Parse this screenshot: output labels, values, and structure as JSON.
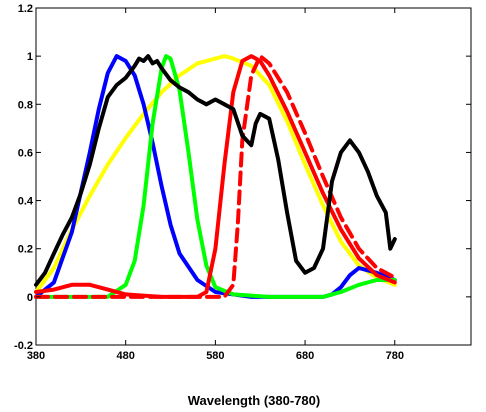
{
  "chart_data": {
    "type": "line",
    "title": "",
    "xlabel": "Wavelength (380-780)",
    "ylabel": "",
    "xlim": [
      380,
      865
    ],
    "ylim": [
      -0.2,
      1.2
    ],
    "x_ticks": [
      380,
      480,
      580,
      680,
      780
    ],
    "y_ticks": [
      -0.2,
      0,
      0.2,
      0.4,
      0.6,
      0.8,
      1,
      1.2
    ],
    "x_tick_labels": [
      "380",
      "480",
      "580",
      "680",
      "780"
    ],
    "y_tick_labels": [
      "-0.2",
      "0",
      "0.2",
      "0.4",
      "0.6",
      "0.8",
      "1",
      "1.2"
    ],
    "grid": false,
    "series": [
      {
        "color": "#ffff00",
        "style": "solid",
        "x": [
          380,
          400,
          420,
          440,
          460,
          480,
          500,
          520,
          540,
          560,
          580,
          590,
          600,
          620,
          640,
          660,
          680,
          700,
          720,
          740,
          760,
          780
        ],
        "y": [
          0.02,
          0.12,
          0.28,
          0.42,
          0.55,
          0.66,
          0.76,
          0.85,
          0.92,
          0.97,
          0.99,
          1.0,
          0.99,
          0.96,
          0.88,
          0.73,
          0.55,
          0.38,
          0.23,
          0.13,
          0.08,
          0.05
        ]
      },
      {
        "color": "#0000ff",
        "style": "solid",
        "x": [
          380,
          400,
          420,
          440,
          450,
          460,
          470,
          480,
          490,
          500,
          510,
          520,
          530,
          540,
          560,
          580,
          600,
          620,
          640,
          680,
          700,
          710,
          720,
          730,
          740,
          760,
          780
        ],
        "y": [
          0.0,
          0.06,
          0.27,
          0.6,
          0.78,
          0.93,
          1.0,
          0.98,
          0.92,
          0.8,
          0.64,
          0.46,
          0.3,
          0.18,
          0.07,
          0.02,
          0.01,
          0.0,
          0.0,
          0.0,
          0.0,
          0.01,
          0.04,
          0.09,
          0.12,
          0.1,
          0.07
        ]
      },
      {
        "color": "#00ff00",
        "style": "solid",
        "x": [
          380,
          460,
          480,
          490,
          500,
          510,
          520,
          525,
          530,
          540,
          550,
          560,
          570,
          580,
          600,
          640,
          700,
          720,
          740,
          760,
          780
        ],
        "y": [
          0.0,
          0.0,
          0.05,
          0.15,
          0.38,
          0.72,
          0.95,
          1.0,
          0.99,
          0.86,
          0.6,
          0.32,
          0.13,
          0.04,
          0.01,
          0.0,
          0.0,
          0.02,
          0.05,
          0.07,
          0.07
        ]
      },
      {
        "color": "#ff0000",
        "style": "solid",
        "x": [
          380,
          400,
          420,
          440,
          460,
          480,
          520,
          560,
          570,
          580,
          590,
          600,
          610,
          620,
          630,
          640,
          660,
          680,
          700,
          720,
          740,
          760,
          780
        ],
        "y": [
          0.02,
          0.03,
          0.05,
          0.05,
          0.03,
          0.01,
          0.0,
          0.0,
          0.02,
          0.2,
          0.55,
          0.85,
          0.98,
          1.0,
          0.98,
          0.92,
          0.77,
          0.6,
          0.43,
          0.28,
          0.16,
          0.09,
          0.06
        ]
      },
      {
        "color": "#ff0000",
        "style": "dashed",
        "x": [
          380,
          440,
          500,
          560,
          590,
          600,
          605,
          610,
          620,
          630,
          640,
          660,
          680,
          700,
          720,
          740,
          760,
          780
        ],
        "y": [
          0.0,
          0.0,
          0.0,
          0.0,
          0.0,
          0.05,
          0.3,
          0.65,
          0.92,
          1.0,
          0.97,
          0.85,
          0.68,
          0.5,
          0.33,
          0.2,
          0.12,
          0.08
        ]
      },
      {
        "color": "#000000",
        "style": "solid",
        "x": [
          380,
          390,
          400,
          410,
          420,
          430,
          440,
          450,
          460,
          470,
          480,
          490,
          495,
          500,
          505,
          510,
          515,
          520,
          530,
          540,
          550,
          560,
          570,
          580,
          590,
          600,
          610,
          620,
          625,
          630,
          640,
          650,
          660,
          670,
          680,
          690,
          700,
          710,
          720,
          730,
          740,
          750,
          760,
          770,
          775,
          780
        ],
        "y": [
          0.05,
          0.1,
          0.18,
          0.26,
          0.33,
          0.43,
          0.55,
          0.7,
          0.83,
          0.88,
          0.91,
          0.96,
          0.99,
          0.98,
          1.0,
          0.97,
          0.98,
          0.95,
          0.9,
          0.87,
          0.85,
          0.82,
          0.8,
          0.82,
          0.8,
          0.78,
          0.67,
          0.63,
          0.72,
          0.76,
          0.74,
          0.57,
          0.35,
          0.15,
          0.1,
          0.12,
          0.2,
          0.48,
          0.6,
          0.65,
          0.6,
          0.52,
          0.42,
          0.35,
          0.2,
          0.24
        ]
      }
    ]
  }
}
